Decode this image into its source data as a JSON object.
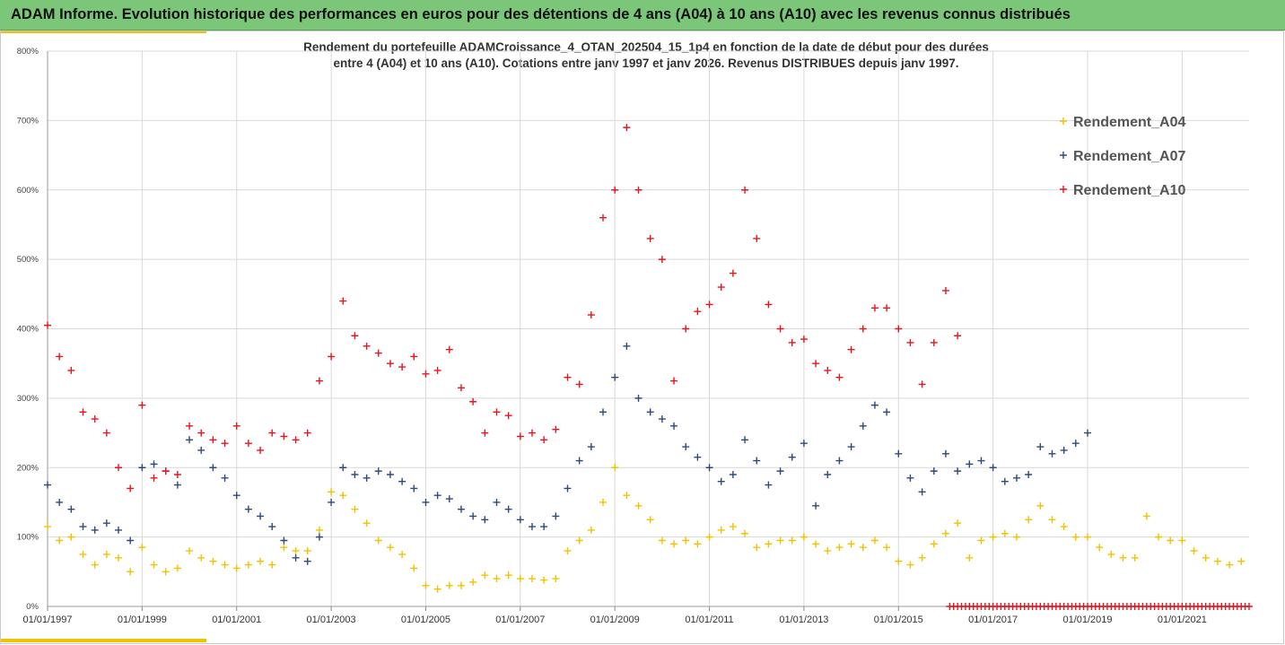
{
  "banner": {
    "title": "ADAM Informe. Evolution historique des performances en euros pour des détentions de 4 ans (A04) à 10 ans (A10) avec les revenus connus distribués"
  },
  "colors": {
    "banner_bg": "#7cc67a",
    "accent": "#f2c200",
    "A04": "#f2c200",
    "A07": "#2e4a7a",
    "A10": "#e8141e",
    "grid": "#d9d9d9"
  },
  "chart_data": {
    "type": "scatter",
    "title_line1": "Rendement du portefeuille ADAMCroissance_4_OTAN_202504_15_1p4  en fonction de la date de début pour des durées",
    "title_line2": "entre 4 (A04) et 10 ans (A10). Cotations entre janv 1997 et janv 2026. Revenus DISTRIBUES depuis janv 1997.",
    "marker": "+",
    "x_axis": {
      "type": "date",
      "range": [
        "01/01/1997",
        "01/06/2022"
      ],
      "tick_labels": [
        "01/01/1997",
        "01/01/1999",
        "01/01/2001",
        "01/01/2003",
        "01/01/2005",
        "01/01/2007",
        "01/01/2009",
        "01/01/2011",
        "01/01/2013",
        "01/01/2015",
        "01/01/2017",
        "01/01/2019",
        "01/01/2021"
      ]
    },
    "y_axis": {
      "unit": "%",
      "range": [
        0,
        800
      ],
      "tick_labels": [
        "0%",
        "100%",
        "200%",
        "300%",
        "400%",
        "500%",
        "600%",
        "700%",
        "800%"
      ],
      "grid": true
    },
    "legend": {
      "placement": "top-right"
    },
    "series": [
      {
        "name": "Rendement_A04",
        "color": "#f2c200",
        "points": [
          [
            "1997-01",
            115
          ],
          [
            "1997-04",
            95
          ],
          [
            "1997-07",
            100
          ],
          [
            "1997-10",
            75
          ],
          [
            "1998-01",
            60
          ],
          [
            "1998-04",
            75
          ],
          [
            "1998-07",
            70
          ],
          [
            "1998-10",
            50
          ],
          [
            "1999-01",
            85
          ],
          [
            "1999-04",
            60
          ],
          [
            "1999-07",
            50
          ],
          [
            "1999-10",
            55
          ],
          [
            "2000-01",
            80
          ],
          [
            "2000-04",
            70
          ],
          [
            "2000-07",
            65
          ],
          [
            "2000-10",
            60
          ],
          [
            "2001-01",
            55
          ],
          [
            "2001-04",
            60
          ],
          [
            "2001-07",
            65
          ],
          [
            "2001-10",
            60
          ],
          [
            "2002-01",
            85
          ],
          [
            "2002-04",
            80
          ],
          [
            "2002-07",
            80
          ],
          [
            "2002-10",
            110
          ],
          [
            "2003-01",
            165
          ],
          [
            "2003-04",
            160
          ],
          [
            "2003-07",
            140
          ],
          [
            "2003-10",
            120
          ],
          [
            "2004-01",
            95
          ],
          [
            "2004-04",
            85
          ],
          [
            "2004-07",
            75
          ],
          [
            "2004-10",
            55
          ],
          [
            "2005-01",
            30
          ],
          [
            "2005-04",
            25
          ],
          [
            "2005-07",
            30
          ],
          [
            "2005-10",
            30
          ],
          [
            "2006-01",
            35
          ],
          [
            "2006-04",
            45
          ],
          [
            "2006-07",
            40
          ],
          [
            "2006-10",
            45
          ],
          [
            "2007-01",
            40
          ],
          [
            "2007-04",
            40
          ],
          [
            "2007-07",
            38
          ],
          [
            "2007-10",
            40
          ],
          [
            "2008-01",
            80
          ],
          [
            "2008-04",
            95
          ],
          [
            "2008-07",
            110
          ],
          [
            "2008-10",
            150
          ],
          [
            "2009-01",
            200
          ],
          [
            "2009-04",
            160
          ],
          [
            "2009-07",
            145
          ],
          [
            "2009-10",
            125
          ],
          [
            "2010-01",
            95
          ],
          [
            "2010-04",
            90
          ],
          [
            "2010-07",
            95
          ],
          [
            "2010-10",
            90
          ],
          [
            "2011-01",
            100
          ],
          [
            "2011-04",
            110
          ],
          [
            "2011-07",
            115
          ],
          [
            "2011-10",
            105
          ],
          [
            "2012-01",
            85
          ],
          [
            "2012-04",
            90
          ],
          [
            "2012-07",
            95
          ],
          [
            "2012-10",
            95
          ],
          [
            "2013-01",
            100
          ],
          [
            "2013-04",
            90
          ],
          [
            "2013-07",
            80
          ],
          [
            "2013-10",
            85
          ],
          [
            "2014-01",
            90
          ],
          [
            "2014-04",
            85
          ],
          [
            "2014-07",
            95
          ],
          [
            "2014-10",
            85
          ],
          [
            "2015-01",
            65
          ],
          [
            "2015-04",
            60
          ],
          [
            "2015-07",
            70
          ],
          [
            "2015-10",
            90
          ],
          [
            "2016-01",
            105
          ],
          [
            "2016-04",
            120
          ],
          [
            "2016-07",
            70
          ],
          [
            "2016-10",
            95
          ],
          [
            "2017-01",
            100
          ],
          [
            "2017-04",
            105
          ],
          [
            "2017-07",
            100
          ],
          [
            "2017-10",
            125
          ],
          [
            "2018-01",
            145
          ],
          [
            "2018-04",
            125
          ],
          [
            "2018-07",
            115
          ],
          [
            "2018-10",
            100
          ],
          [
            "2019-01",
            100
          ],
          [
            "2019-04",
            85
          ],
          [
            "2019-07",
            75
          ],
          [
            "2019-10",
            70
          ],
          [
            "2020-01",
            70
          ],
          [
            "2020-04",
            130
          ],
          [
            "2020-07",
            100
          ],
          [
            "2020-10",
            95
          ],
          [
            "2021-01",
            95
          ],
          [
            "2021-04",
            80
          ],
          [
            "2021-07",
            70
          ],
          [
            "2021-10",
            65
          ],
          [
            "2022-01",
            60
          ],
          [
            "2022-04",
            65
          ]
        ]
      },
      {
        "name": "Rendement_A07",
        "color": "#2e4a7a",
        "points": [
          [
            "1997-01",
            175
          ],
          [
            "1997-04",
            150
          ],
          [
            "1997-07",
            140
          ],
          [
            "1997-10",
            115
          ],
          [
            "1998-01",
            110
          ],
          [
            "1998-04",
            120
          ],
          [
            "1998-07",
            110
          ],
          [
            "1998-10",
            95
          ],
          [
            "1999-01",
            200
          ],
          [
            "1999-04",
            205
          ],
          [
            "1999-07",
            195
          ],
          [
            "1999-10",
            175
          ],
          [
            "2000-01",
            240
          ],
          [
            "2000-04",
            225
          ],
          [
            "2000-07",
            200
          ],
          [
            "2000-10",
            185
          ],
          [
            "2001-01",
            160
          ],
          [
            "2001-04",
            140
          ],
          [
            "2001-07",
            130
          ],
          [
            "2001-10",
            115
          ],
          [
            "2002-01",
            95
          ],
          [
            "2002-04",
            70
          ],
          [
            "2002-07",
            65
          ],
          [
            "2002-10",
            100
          ],
          [
            "2003-01",
            150
          ],
          [
            "2003-04",
            200
          ],
          [
            "2003-07",
            190
          ],
          [
            "2003-10",
            185
          ],
          [
            "2004-01",
            195
          ],
          [
            "2004-04",
            190
          ],
          [
            "2004-07",
            180
          ],
          [
            "2004-10",
            170
          ],
          [
            "2005-01",
            150
          ],
          [
            "2005-04",
            160
          ],
          [
            "2005-07",
            155
          ],
          [
            "2005-10",
            140
          ],
          [
            "2006-01",
            130
          ],
          [
            "2006-04",
            125
          ],
          [
            "2006-07",
            150
          ],
          [
            "2006-10",
            140
          ],
          [
            "2007-01",
            125
          ],
          [
            "2007-04",
            115
          ],
          [
            "2007-07",
            115
          ],
          [
            "2007-10",
            130
          ],
          [
            "2008-01",
            170
          ],
          [
            "2008-04",
            210
          ],
          [
            "2008-07",
            230
          ],
          [
            "2008-10",
            280
          ],
          [
            "2009-01",
            330
          ],
          [
            "2009-04",
            375
          ],
          [
            "2009-07",
            300
          ],
          [
            "2009-10",
            280
          ],
          [
            "2010-01",
            270
          ],
          [
            "2010-04",
            260
          ],
          [
            "2010-07",
            230
          ],
          [
            "2010-10",
            215
          ],
          [
            "2011-01",
            200
          ],
          [
            "2011-04",
            180
          ],
          [
            "2011-07",
            190
          ],
          [
            "2011-10",
            240
          ],
          [
            "2012-01",
            210
          ],
          [
            "2012-04",
            175
          ],
          [
            "2012-07",
            195
          ],
          [
            "2012-10",
            215
          ],
          [
            "2013-01",
            235
          ],
          [
            "2013-04",
            145
          ],
          [
            "2013-07",
            190
          ],
          [
            "2013-10",
            210
          ],
          [
            "2014-01",
            230
          ],
          [
            "2014-04",
            260
          ],
          [
            "2014-07",
            290
          ],
          [
            "2014-10",
            280
          ],
          [
            "2015-01",
            220
          ],
          [
            "2015-04",
            185
          ],
          [
            "2015-07",
            165
          ],
          [
            "2015-10",
            195
          ],
          [
            "2016-01",
            220
          ],
          [
            "2016-04",
            195
          ],
          [
            "2016-07",
            205
          ],
          [
            "2016-10",
            210
          ],
          [
            "2017-01",
            200
          ],
          [
            "2017-04",
            180
          ],
          [
            "2017-07",
            185
          ],
          [
            "2017-10",
            190
          ],
          [
            "2018-01",
            230
          ],
          [
            "2018-04",
            220
          ],
          [
            "2018-07",
            225
          ],
          [
            "2018-10",
            235
          ],
          [
            "2019-01",
            250
          ]
        ]
      },
      {
        "name": "Rendement_A10",
        "color": "#e8141e",
        "points": [
          [
            "1997-01",
            405
          ],
          [
            "1997-04",
            360
          ],
          [
            "1997-07",
            340
          ],
          [
            "1997-10",
            280
          ],
          [
            "1998-01",
            270
          ],
          [
            "1998-04",
            250
          ],
          [
            "1998-07",
            200
          ],
          [
            "1998-10",
            170
          ],
          [
            "1999-01",
            290
          ],
          [
            "1999-04",
            185
          ],
          [
            "1999-07",
            195
          ],
          [
            "1999-10",
            190
          ],
          [
            "2000-01",
            260
          ],
          [
            "2000-04",
            250
          ],
          [
            "2000-07",
            240
          ],
          [
            "2000-10",
            235
          ],
          [
            "2001-01",
            260
          ],
          [
            "2001-04",
            235
          ],
          [
            "2001-07",
            225
          ],
          [
            "2001-10",
            250
          ],
          [
            "2002-01",
            245
          ],
          [
            "2002-04",
            240
          ],
          [
            "2002-07",
            250
          ],
          [
            "2002-10",
            325
          ],
          [
            "2003-01",
            360
          ],
          [
            "2003-04",
            440
          ],
          [
            "2003-07",
            390
          ],
          [
            "2003-10",
            375
          ],
          [
            "2004-01",
            365
          ],
          [
            "2004-04",
            350
          ],
          [
            "2004-07",
            345
          ],
          [
            "2004-10",
            360
          ],
          [
            "2005-01",
            335
          ],
          [
            "2005-04",
            340
          ],
          [
            "2005-07",
            370
          ],
          [
            "2005-10",
            315
          ],
          [
            "2006-01",
            295
          ],
          [
            "2006-04",
            250
          ],
          [
            "2006-07",
            280
          ],
          [
            "2006-10",
            275
          ],
          [
            "2007-01",
            245
          ],
          [
            "2007-04",
            250
          ],
          [
            "2007-07",
            240
          ],
          [
            "2007-10",
            255
          ],
          [
            "2008-01",
            330
          ],
          [
            "2008-04",
            320
          ],
          [
            "2008-07",
            420
          ],
          [
            "2008-10",
            560
          ],
          [
            "2009-01",
            600
          ],
          [
            "2009-04",
            690
          ],
          [
            "2009-07",
            600
          ],
          [
            "2009-10",
            530
          ],
          [
            "2010-01",
            500
          ],
          [
            "2010-04",
            325
          ],
          [
            "2010-07",
            400
          ],
          [
            "2010-10",
            425
          ],
          [
            "2011-01",
            435
          ],
          [
            "2011-04",
            460
          ],
          [
            "2011-07",
            480
          ],
          [
            "2011-10",
            600
          ],
          [
            "2012-01",
            530
          ],
          [
            "2012-04",
            435
          ],
          [
            "2012-07",
            400
          ],
          [
            "2012-10",
            380
          ],
          [
            "2013-01",
            385
          ],
          [
            "2013-04",
            350
          ],
          [
            "2013-07",
            340
          ],
          [
            "2013-10",
            330
          ],
          [
            "2014-01",
            370
          ],
          [
            "2014-04",
            400
          ],
          [
            "2014-07",
            430
          ],
          [
            "2014-10",
            430
          ],
          [
            "2015-01",
            400
          ],
          [
            "2015-04",
            380
          ],
          [
            "2015-07",
            320
          ],
          [
            "2015-10",
            380
          ],
          [
            "2016-01",
            455
          ],
          [
            "2016-04",
            390
          ]
        ],
        "zero_band": {
          "from": "2016-02",
          "to": "2022-06",
          "value": 0
        }
      }
    ]
  }
}
